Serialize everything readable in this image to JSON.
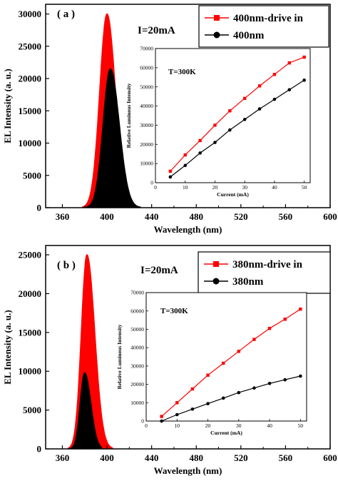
{
  "chart_data": [
    {
      "panel": "( a )",
      "type": "line",
      "xlabel": "Wavelength (nm)",
      "ylabel": "EL Intensity (a. u.)",
      "xlim": [
        345,
        600
      ],
      "ylim": [
        0,
        31500
      ],
      "xticks": [
        360,
        400,
        440,
        480,
        520,
        560,
        600
      ],
      "yticks": [
        0,
        5000,
        10000,
        15000,
        20000,
        25000,
        30000
      ],
      "annotation": "I=20mA",
      "series": [
        {
          "name": "400nm-drive in",
          "color": "#ff0000",
          "peak_x": 400,
          "peak_y": 30000,
          "sigma_left": 6.5,
          "sigma_right": 7.5,
          "x_range": [
            378,
            423
          ]
        },
        {
          "name": "400nm",
          "color": "#000000",
          "peak_x": 403,
          "peak_y": 21500,
          "sigma_left": 6.5,
          "sigma_right": 8.0,
          "x_range": [
            380,
            430
          ]
        }
      ],
      "inset": {
        "type": "line",
        "annotation": "T=300K",
        "xlabel": "Current (mA)",
        "ylabel": "Relative Luminous Intensity",
        "xlim": [
          0,
          52
        ],
        "ylim": [
          0,
          70000
        ],
        "xticks": [
          0,
          10,
          20,
          30,
          40,
          50
        ],
        "yticks": [
          0,
          10000,
          20000,
          30000,
          40000,
          50000,
          60000,
          70000
        ],
        "x": [
          5,
          10,
          15,
          20,
          25,
          30,
          35,
          40,
          45,
          50
        ],
        "series": [
          {
            "name": "400nm-drive in",
            "color": "#ff0000",
            "values": [
              6000,
              14500,
              22000,
              30000,
              37500,
              44000,
              50500,
              56500,
              62500,
              65500
            ]
          },
          {
            "name": "400nm",
            "color": "#000000",
            "values": [
              3000,
              9000,
              15500,
              21000,
              27500,
              33000,
              38500,
              43500,
              48500,
              53500
            ]
          }
        ]
      }
    },
    {
      "panel": "( b )",
      "type": "line",
      "xlabel": "Wavelength (nm)",
      "ylabel": "EL Intensity (a. u.)",
      "xlim": [
        345,
        600
      ],
      "ylim": [
        0,
        26200
      ],
      "xticks": [
        360,
        400,
        440,
        480,
        520,
        560,
        600
      ],
      "yticks": [
        0,
        5000,
        10000,
        15000,
        20000,
        25000
      ],
      "annotation": "I=20mA",
      "series": [
        {
          "name": "380nm-drive in",
          "color": "#ff0000",
          "peak_x": 382,
          "peak_y": 25000,
          "sigma_left": 5.0,
          "sigma_right": 7.0,
          "x_range": [
            365,
            405
          ]
        },
        {
          "name": "380nm",
          "color": "#000000",
          "peak_x": 380,
          "peak_y": 9800,
          "sigma_left": 4.0,
          "sigma_right": 5.5,
          "x_range": [
            366,
            395
          ]
        }
      ],
      "inset": {
        "type": "line",
        "annotation": "T=300K",
        "xlabel": "Current (mA)",
        "ylabel": "Relative Luminous Intensity",
        "xlim": [
          0,
          52
        ],
        "ylim": [
          0,
          70000
        ],
        "xticks": [
          0,
          10,
          20,
          30,
          40,
          50
        ],
        "yticks": [
          0,
          10000,
          20000,
          30000,
          40000,
          50000,
          60000,
          70000
        ],
        "x": [
          5,
          10,
          15,
          20,
          25,
          30,
          35,
          40,
          45,
          50
        ],
        "series": [
          {
            "name": "380nm-drive in",
            "color": "#ff0000",
            "values": [
              2500,
              10000,
              17500,
              25000,
              31500,
              38000,
              44500,
              50500,
              55500,
              61000
            ]
          },
          {
            "name": "380nm",
            "color": "#000000",
            "values": [
              0,
              3500,
              6500,
              9500,
              12500,
              15500,
              18000,
              20500,
              22500,
              24500
            ]
          }
        ]
      }
    }
  ]
}
